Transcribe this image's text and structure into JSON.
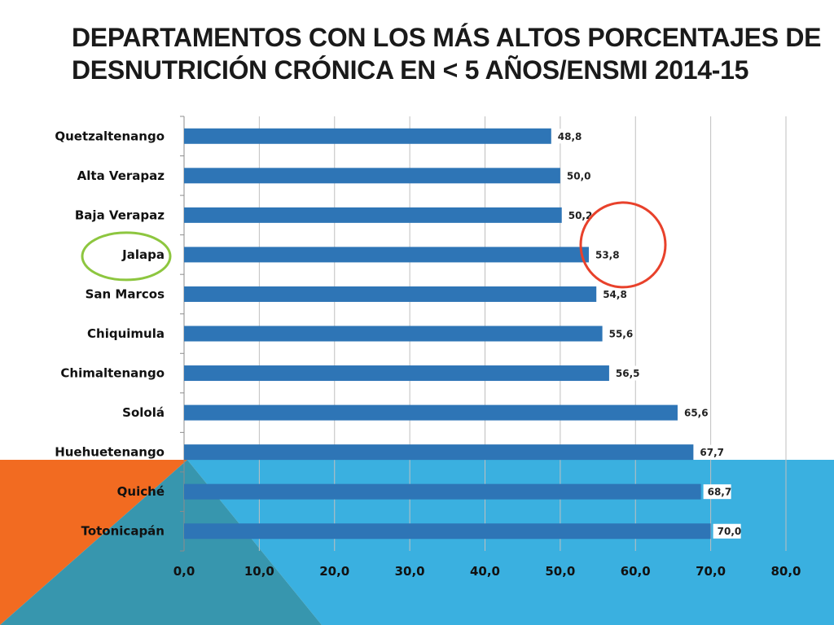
{
  "title": {
    "line1": "Departamentos con los más altos porcentajes de",
    "line2": "desnutrición crónica en < 5 años/ENSMI 2014-15"
  },
  "colors": {
    "bar": "#2E75B6",
    "bg_orange": "#F26B21",
    "bg_blue": "#3AB0E0",
    "bg_teal": "#3796AE",
    "highlight_green": "#8DC63F",
    "highlight_red": "#E8412B"
  },
  "chart_data": {
    "type": "bar",
    "orientation": "horizontal",
    "categories": [
      "Quetzaltenango",
      "Alta Verapaz",
      "Baja Verapaz",
      "Jalapa",
      "San Marcos",
      "Chiquimula",
      "Chimaltenango",
      "Sololá",
      "Huehuetenango",
      "Quiché",
      "Totonicapán"
    ],
    "values": [
      48.8,
      50.0,
      50.2,
      53.8,
      54.8,
      55.6,
      56.5,
      65.6,
      67.7,
      68.7,
      70.0
    ],
    "value_labels": [
      "48,8",
      "50,0",
      "50,2",
      "53,8",
      "54,8",
      "55,6",
      "56,5",
      "65,6",
      "67,7",
      "68,7",
      "70,0"
    ],
    "xlim": [
      0,
      80
    ],
    "xticks": [
      0,
      10,
      20,
      30,
      40,
      50,
      60,
      70,
      80
    ],
    "xtick_labels": [
      "0,0",
      "10,0",
      "20,0",
      "30,0",
      "40,0",
      "50,0",
      "60,0",
      "70,0",
      "80,0"
    ],
    "grid": true,
    "highlight_category": "Jalapa"
  }
}
